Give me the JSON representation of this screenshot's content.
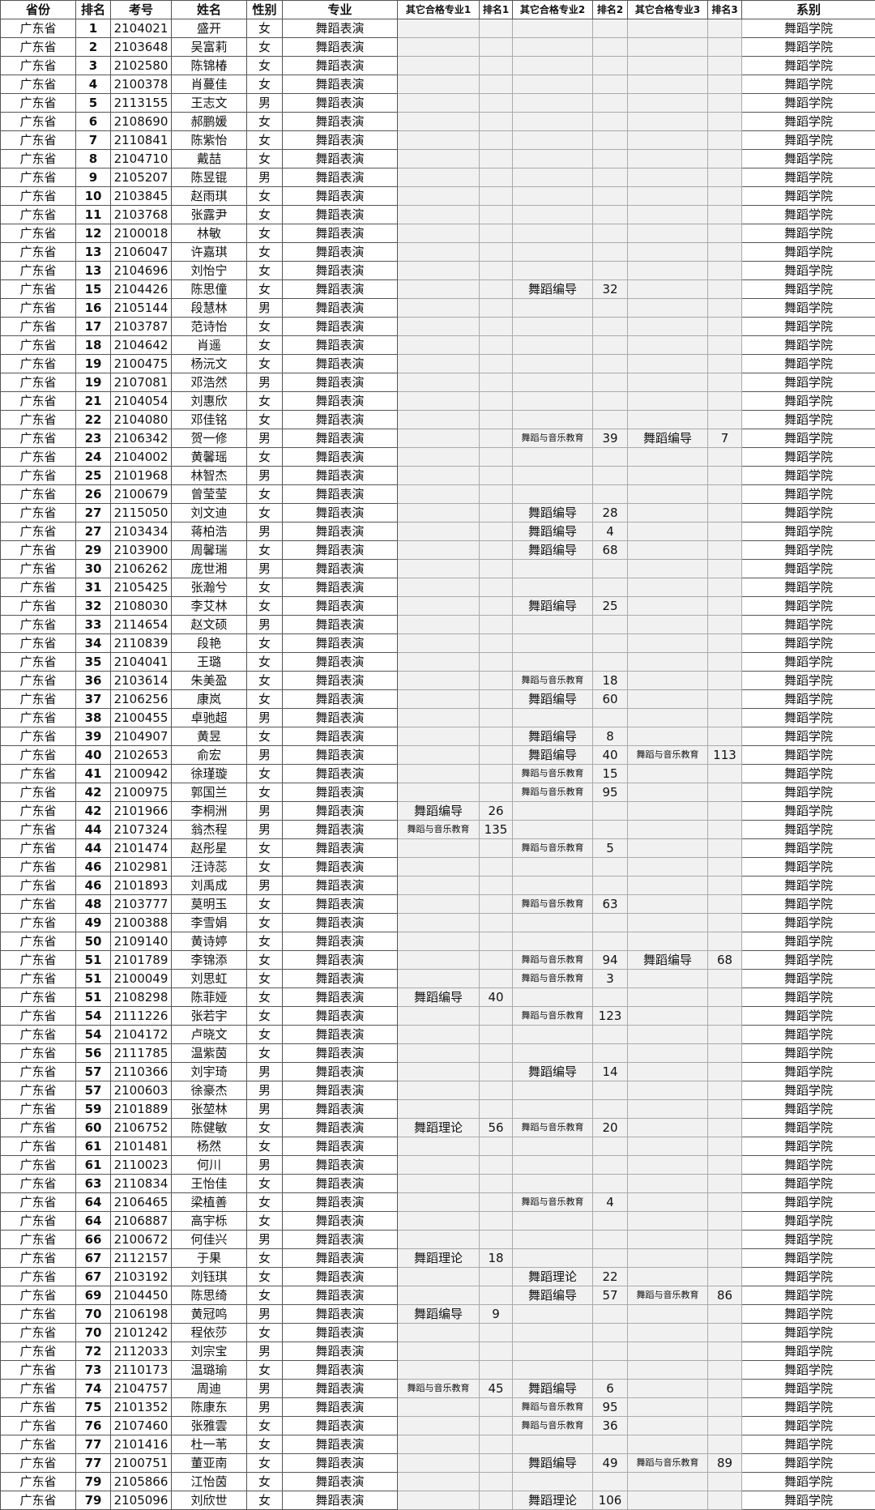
{
  "headers": [
    "省份",
    "排名",
    "考号",
    "姓名",
    "性别",
    "专业",
    "其它合格专业1",
    "排名1",
    "其它合格专业2",
    "排名2",
    "其它合格专业3",
    "排名3",
    "系别"
  ],
  "province": "广东省",
  "major": "舞蹈表演",
  "department": "舞蹈学院",
  "row_fields": [
    "rank",
    "exam_no",
    "name",
    "gender",
    "other1",
    "rank1",
    "other2",
    "rank2",
    "other3",
    "rank3"
  ],
  "rows": [
    [
      "1",
      "2104021",
      "盛开",
      "女",
      "",
      "",
      "",
      "",
      "",
      ""
    ],
    [
      "2",
      "2103648",
      "吴富莉",
      "女",
      "",
      "",
      "",
      "",
      "",
      ""
    ],
    [
      "3",
      "2102580",
      "陈锦椿",
      "女",
      "",
      "",
      "",
      "",
      "",
      ""
    ],
    [
      "4",
      "2100378",
      "肖蔓佳",
      "女",
      "",
      "",
      "",
      "",
      "",
      ""
    ],
    [
      "5",
      "2113155",
      "王志文",
      "男",
      "",
      "",
      "",
      "",
      "",
      ""
    ],
    [
      "6",
      "2108690",
      "郝鹏媛",
      "女",
      "",
      "",
      "",
      "",
      "",
      ""
    ],
    [
      "7",
      "2110841",
      "陈紫怡",
      "女",
      "",
      "",
      "",
      "",
      "",
      ""
    ],
    [
      "8",
      "2104710",
      "戴喆",
      "女",
      "",
      "",
      "",
      "",
      "",
      ""
    ],
    [
      "9",
      "2105207",
      "陈昱锟",
      "男",
      "",
      "",
      "",
      "",
      "",
      ""
    ],
    [
      "10",
      "2103845",
      "赵雨琪",
      "女",
      "",
      "",
      "",
      "",
      "",
      ""
    ],
    [
      "11",
      "2103768",
      "张露尹",
      "女",
      "",
      "",
      "",
      "",
      "",
      ""
    ],
    [
      "12",
      "2100018",
      "林敏",
      "女",
      "",
      "",
      "",
      "",
      "",
      ""
    ],
    [
      "13",
      "2106047",
      "许嘉琪",
      "女",
      "",
      "",
      "",
      "",
      "",
      ""
    ],
    [
      "13",
      "2104696",
      "刘怡宁",
      "女",
      "",
      "",
      "",
      "",
      "",
      ""
    ],
    [
      "15",
      "2104426",
      "陈思僮",
      "女",
      "",
      "",
      "舞蹈编导",
      "32",
      "",
      ""
    ],
    [
      "16",
      "2105144",
      "段慧林",
      "男",
      "",
      "",
      "",
      "",
      "",
      ""
    ],
    [
      "17",
      "2103787",
      "范诗怡",
      "女",
      "",
      "",
      "",
      "",
      "",
      ""
    ],
    [
      "18",
      "2104642",
      "肖遥",
      "女",
      "",
      "",
      "",
      "",
      "",
      ""
    ],
    [
      "19",
      "2100475",
      "杨沅文",
      "女",
      "",
      "",
      "",
      "",
      "",
      ""
    ],
    [
      "19",
      "2107081",
      "邓浩然",
      "男",
      "",
      "",
      "",
      "",
      "",
      ""
    ],
    [
      "21",
      "2104054",
      "刘惠欣",
      "女",
      "",
      "",
      "",
      "",
      "",
      ""
    ],
    [
      "22",
      "2104080",
      "邓佳铭",
      "女",
      "",
      "",
      "",
      "",
      "",
      ""
    ],
    [
      "23",
      "2106342",
      "贺一修",
      "男",
      "",
      "",
      "舞蹈与音乐教育",
      "39",
      "舞蹈编导",
      "7"
    ],
    [
      "24",
      "2104002",
      "黄馨瑶",
      "女",
      "",
      "",
      "",
      "",
      "",
      ""
    ],
    [
      "25",
      "2101968",
      "林智杰",
      "男",
      "",
      "",
      "",
      "",
      "",
      ""
    ],
    [
      "26",
      "2100679",
      "曾莹莹",
      "女",
      "",
      "",
      "",
      "",
      "",
      ""
    ],
    [
      "27",
      "2115050",
      "刘文迪",
      "女",
      "",
      "",
      "舞蹈编导",
      "28",
      "",
      ""
    ],
    [
      "27",
      "2103434",
      "蒋柏浩",
      "男",
      "",
      "",
      "舞蹈编导",
      "4",
      "",
      ""
    ],
    [
      "29",
      "2103900",
      "周馨瑞",
      "女",
      "",
      "",
      "舞蹈编导",
      "68",
      "",
      ""
    ],
    [
      "30",
      "2106262",
      "庞世湘",
      "男",
      "",
      "",
      "",
      "",
      "",
      ""
    ],
    [
      "31",
      "2105425",
      "张瀚兮",
      "女",
      "",
      "",
      "",
      "",
      "",
      ""
    ],
    [
      "32",
      "2108030",
      "李艾林",
      "女",
      "",
      "",
      "舞蹈编导",
      "25",
      "",
      ""
    ],
    [
      "33",
      "2114654",
      "赵文硕",
      "男",
      "",
      "",
      "",
      "",
      "",
      ""
    ],
    [
      "34",
      "2110839",
      "段艳",
      "女",
      "",
      "",
      "",
      "",
      "",
      ""
    ],
    [
      "35",
      "2104041",
      "王璐",
      "女",
      "",
      "",
      "",
      "",
      "",
      ""
    ],
    [
      "36",
      "2103614",
      "朱美盈",
      "女",
      "",
      "",
      "舞蹈与音乐教育",
      "18",
      "",
      ""
    ],
    [
      "37",
      "2106256",
      "康岚",
      "女",
      "",
      "",
      "舞蹈编导",
      "60",
      "",
      ""
    ],
    [
      "38",
      "2100455",
      "卓驰超",
      "男",
      "",
      "",
      "",
      "",
      "",
      ""
    ],
    [
      "39",
      "2104907",
      "黄昱",
      "女",
      "",
      "",
      "舞蹈编导",
      "8",
      "",
      ""
    ],
    [
      "40",
      "2102653",
      "俞宏",
      "男",
      "",
      "",
      "舞蹈编导",
      "40",
      "舞蹈与音乐教育",
      "113"
    ],
    [
      "41",
      "2100942",
      "徐瑾璇",
      "女",
      "",
      "",
      "舞蹈与音乐教育",
      "15",
      "",
      ""
    ],
    [
      "42",
      "2100975",
      "郭国兰",
      "女",
      "",
      "",
      "舞蹈与音乐教育",
      "95",
      "",
      ""
    ],
    [
      "42",
      "2101966",
      "李桐洲",
      "男",
      "舞蹈编导",
      "26",
      "",
      "",
      "",
      ""
    ],
    [
      "44",
      "2107324",
      "翁杰程",
      "男",
      "舞蹈与音乐教育",
      "135",
      "",
      "",
      "",
      ""
    ],
    [
      "44",
      "2101474",
      "赵彤星",
      "女",
      "",
      "",
      "舞蹈与音乐教育",
      "5",
      "",
      ""
    ],
    [
      "46",
      "2102981",
      "汪诗蕊",
      "女",
      "",
      "",
      "",
      "",
      "",
      ""
    ],
    [
      "46",
      "2101893",
      "刘禹成",
      "男",
      "",
      "",
      "",
      "",
      "",
      ""
    ],
    [
      "48",
      "2103777",
      "莫明玉",
      "女",
      "",
      "",
      "舞蹈与音乐教育",
      "63",
      "",
      ""
    ],
    [
      "49",
      "2100388",
      "李雪娟",
      "女",
      "",
      "",
      "",
      "",
      "",
      ""
    ],
    [
      "50",
      "2109140",
      "黄诗婷",
      "女",
      "",
      "",
      "",
      "",
      "",
      ""
    ],
    [
      "51",
      "2101789",
      "李锦添",
      "女",
      "",
      "",
      "舞蹈与音乐教育",
      "94",
      "舞蹈编导",
      "68"
    ],
    [
      "51",
      "2100049",
      "刘思虹",
      "女",
      "",
      "",
      "舞蹈与音乐教育",
      "3",
      "",
      ""
    ],
    [
      "51",
      "2108298",
      "陈菲娅",
      "女",
      "舞蹈编导",
      "40",
      "",
      "",
      "",
      ""
    ],
    [
      "54",
      "2111226",
      "张若宇",
      "女",
      "",
      "",
      "舞蹈与音乐教育",
      "123",
      "",
      ""
    ],
    [
      "54",
      "2104172",
      "卢晓文",
      "女",
      "",
      "",
      "",
      "",
      "",
      ""
    ],
    [
      "56",
      "2111785",
      "温紫茵",
      "女",
      "",
      "",
      "",
      "",
      "",
      ""
    ],
    [
      "57",
      "2110366",
      "刘宇琦",
      "男",
      "",
      "",
      "舞蹈编导",
      "14",
      "",
      ""
    ],
    [
      "57",
      "2100603",
      "徐豪杰",
      "男",
      "",
      "",
      "",
      "",
      "",
      ""
    ],
    [
      "59",
      "2101889",
      "张堃林",
      "男",
      "",
      "",
      "",
      "",
      "",
      ""
    ],
    [
      "60",
      "2106752",
      "陈健敏",
      "女",
      "舞蹈理论",
      "56",
      "舞蹈与音乐教育",
      "20",
      "",
      ""
    ],
    [
      "61",
      "2101481",
      "杨然",
      "女",
      "",
      "",
      "",
      "",
      "",
      ""
    ],
    [
      "61",
      "2110023",
      "何川",
      "男",
      "",
      "",
      "",
      "",
      "",
      ""
    ],
    [
      "63",
      "2110834",
      "王怡佳",
      "女",
      "",
      "",
      "",
      "",
      "",
      ""
    ],
    [
      "64",
      "2106465",
      "梁植善",
      "女",
      "",
      "",
      "舞蹈与音乐教育",
      "4",
      "",
      ""
    ],
    [
      "64",
      "2106887",
      "高宇栎",
      "女",
      "",
      "",
      "",
      "",
      "",
      ""
    ],
    [
      "66",
      "2100672",
      "何佳兴",
      "男",
      "",
      "",
      "",
      "",
      "",
      ""
    ],
    [
      "67",
      "2112157",
      "于果",
      "女",
      "舞蹈理论",
      "18",
      "",
      "",
      "",
      ""
    ],
    [
      "67",
      "2103192",
      "刘钰琪",
      "女",
      "",
      "",
      "舞蹈理论",
      "22",
      "",
      ""
    ],
    [
      "69",
      "2104450",
      "陈思绮",
      "女",
      "",
      "",
      "舞蹈编导",
      "57",
      "舞蹈与音乐教育",
      "86"
    ],
    [
      "70",
      "2106198",
      "黄冠鸣",
      "男",
      "舞蹈编导",
      "9",
      "",
      "",
      "",
      ""
    ],
    [
      "70",
      "2101242",
      "程依莎",
      "女",
      "",
      "",
      "",
      "",
      "",
      ""
    ],
    [
      "72",
      "2112033",
      "刘宗宝",
      "男",
      "",
      "",
      "",
      "",
      "",
      ""
    ],
    [
      "73",
      "2110173",
      "温璐瑜",
      "女",
      "",
      "",
      "",
      "",
      "",
      ""
    ],
    [
      "74",
      "2104757",
      "周迪",
      "男",
      "舞蹈与音乐教育",
      "45",
      "舞蹈编导",
      "6",
      "",
      ""
    ],
    [
      "75",
      "2101352",
      "陈康东",
      "男",
      "",
      "",
      "舞蹈与音乐教育",
      "95",
      "",
      ""
    ],
    [
      "76",
      "2107460",
      "张雅雲",
      "女",
      "",
      "",
      "舞蹈与音乐教育",
      "36",
      "",
      ""
    ],
    [
      "77",
      "2101416",
      "杜一苇",
      "女",
      "",
      "",
      "",
      "",
      "",
      ""
    ],
    [
      "77",
      "2100751",
      "董亚南",
      "女",
      "",
      "",
      "舞蹈编导",
      "49",
      "舞蹈与音乐教育",
      "89"
    ],
    [
      "79",
      "2105866",
      "江怡茵",
      "女",
      "",
      "",
      "",
      "",
      "",
      ""
    ],
    [
      "79",
      "2105096",
      "刘欣世",
      "女",
      "",
      "",
      "舞蹈理论",
      "106",
      "",
      ""
    ]
  ]
}
